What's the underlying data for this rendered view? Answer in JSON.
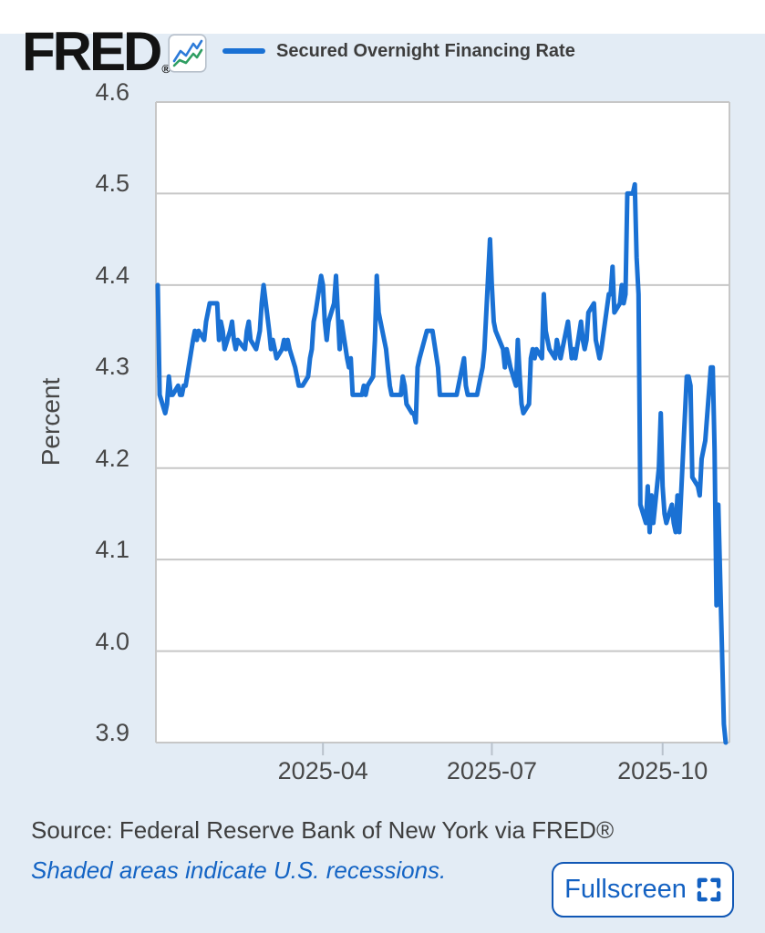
{
  "header": {
    "logo_text": "FRED",
    "registered_mark": "®",
    "logo_icon": "line-chart-icon"
  },
  "legend": {
    "series_label": "Secured Overnight Financing Rate",
    "swatch_color": "#1a71d4"
  },
  "footer": {
    "source_text": "Source: Federal Reserve Bank of New York via FRED®",
    "recession_note": "Shaded areas indicate U.S. recessions.",
    "fullscreen_label": "Fullscreen",
    "fullscreen_icon": "fullscreen-expand-icon"
  },
  "colors": {
    "widget_background": "#e3ecf5",
    "plot_background": "#ffffff",
    "grid": "#c7c7c7",
    "tick": "#b9c2cc",
    "axis_text": "#474747",
    "line": "#1a71d4",
    "blue_text": "#1464c4",
    "button_border": "#1057b5",
    "button_text": "#1361c2"
  },
  "chart_data": {
    "type": "line",
    "title": "Secured Overnight Financing Rate",
    "xlabel": "",
    "ylabel": "Percent",
    "ylim": [
      3.9,
      4.6
    ],
    "yticks": [
      3.9,
      4.0,
      4.1,
      4.2,
      4.3,
      4.4,
      4.5,
      4.6
    ],
    "ytick_labels": [
      "3.9",
      "4.0",
      "4.1",
      "4.2",
      "4.3",
      "4.4",
      "4.5",
      "4.6"
    ],
    "xlim": [
      "2025-01-01",
      "2025-11-06"
    ],
    "xticks": [
      "2025-04-01",
      "2025-07-01",
      "2025-10-01"
    ],
    "xtick_labels": [
      "2025-04",
      "2025-07",
      "2025-10"
    ],
    "grid": "horizontal",
    "legend_position": "top",
    "line_color": "#1a71d4",
    "line_width": 5,
    "series": [
      {
        "name": "Secured Overnight Financing Rate",
        "units": "Percent",
        "points": [
          [
            "2025-01-02",
            4.4
          ],
          [
            "2025-01-03",
            4.28
          ],
          [
            "2025-01-06",
            4.26
          ],
          [
            "2025-01-07",
            4.27
          ],
          [
            "2025-01-08",
            4.3
          ],
          [
            "2025-01-09",
            4.28
          ],
          [
            "2025-01-10",
            4.28
          ],
          [
            "2025-01-13",
            4.29
          ],
          [
            "2025-01-14",
            4.28
          ],
          [
            "2025-01-15",
            4.28
          ],
          [
            "2025-01-16",
            4.29
          ],
          [
            "2025-01-17",
            4.29
          ],
          [
            "2025-01-21",
            4.34
          ],
          [
            "2025-01-22",
            4.35
          ],
          [
            "2025-01-23",
            4.34
          ],
          [
            "2025-01-24",
            4.35
          ],
          [
            "2025-01-27",
            4.34
          ],
          [
            "2025-01-28",
            4.36
          ],
          [
            "2025-01-29",
            4.37
          ],
          [
            "2025-01-30",
            4.38
          ],
          [
            "2025-01-31",
            4.38
          ],
          [
            "2025-02-03",
            4.38
          ],
          [
            "2025-02-04",
            4.34
          ],
          [
            "2025-02-05",
            4.36
          ],
          [
            "2025-02-06",
            4.35
          ],
          [
            "2025-02-07",
            4.33
          ],
          [
            "2025-02-10",
            4.35
          ],
          [
            "2025-02-11",
            4.36
          ],
          [
            "2025-02-12",
            4.34
          ],
          [
            "2025-02-13",
            4.33
          ],
          [
            "2025-02-14",
            4.34
          ],
          [
            "2025-02-18",
            4.33
          ],
          [
            "2025-02-19",
            4.35
          ],
          [
            "2025-02-20",
            4.36
          ],
          [
            "2025-02-21",
            4.34
          ],
          [
            "2025-02-24",
            4.33
          ],
          [
            "2025-02-25",
            4.34
          ],
          [
            "2025-02-26",
            4.35
          ],
          [
            "2025-02-27",
            4.38
          ],
          [
            "2025-02-28",
            4.4
          ],
          [
            "2025-03-03",
            4.35
          ],
          [
            "2025-03-04",
            4.33
          ],
          [
            "2025-03-05",
            4.34
          ],
          [
            "2025-03-06",
            4.33
          ],
          [
            "2025-03-07",
            4.32
          ],
          [
            "2025-03-10",
            4.33
          ],
          [
            "2025-03-11",
            4.34
          ],
          [
            "2025-03-12",
            4.33
          ],
          [
            "2025-03-13",
            4.34
          ],
          [
            "2025-03-14",
            4.33
          ],
          [
            "2025-03-17",
            4.31
          ],
          [
            "2025-03-18",
            4.3
          ],
          [
            "2025-03-19",
            4.29
          ],
          [
            "2025-03-20",
            4.29
          ],
          [
            "2025-03-21",
            4.29
          ],
          [
            "2025-03-24",
            4.3
          ],
          [
            "2025-03-25",
            4.32
          ],
          [
            "2025-03-26",
            4.33
          ],
          [
            "2025-03-27",
            4.36
          ],
          [
            "2025-03-28",
            4.37
          ],
          [
            "2025-03-31",
            4.41
          ],
          [
            "2025-04-01",
            4.4
          ],
          [
            "2025-04-02",
            4.36
          ],
          [
            "2025-04-03",
            4.34
          ],
          [
            "2025-04-04",
            4.36
          ],
          [
            "2025-04-07",
            4.38
          ],
          [
            "2025-04-08",
            4.41
          ],
          [
            "2025-04-09",
            4.37
          ],
          [
            "2025-04-10",
            4.33
          ],
          [
            "2025-04-11",
            4.36
          ],
          [
            "2025-04-14",
            4.32
          ],
          [
            "2025-04-15",
            4.31
          ],
          [
            "2025-04-16",
            4.32
          ],
          [
            "2025-04-17",
            4.28
          ],
          [
            "2025-04-21",
            4.28
          ],
          [
            "2025-04-22",
            4.28
          ],
          [
            "2025-04-23",
            4.29
          ],
          [
            "2025-04-24",
            4.28
          ],
          [
            "2025-04-25",
            4.29
          ],
          [
            "2025-04-28",
            4.3
          ],
          [
            "2025-04-29",
            4.34
          ],
          [
            "2025-04-30",
            4.41
          ],
          [
            "2025-05-01",
            4.37
          ],
          [
            "2025-05-02",
            4.36
          ],
          [
            "2025-05-05",
            4.33
          ],
          [
            "2025-05-06",
            4.31
          ],
          [
            "2025-05-07",
            4.29
          ],
          [
            "2025-05-08",
            4.28
          ],
          [
            "2025-05-09",
            4.28
          ],
          [
            "2025-05-12",
            4.28
          ],
          [
            "2025-05-13",
            4.28
          ],
          [
            "2025-05-14",
            4.3
          ],
          [
            "2025-05-15",
            4.29
          ],
          [
            "2025-05-16",
            4.27
          ],
          [
            "2025-05-19",
            4.26
          ],
          [
            "2025-05-20",
            4.26
          ],
          [
            "2025-05-21",
            4.25
          ],
          [
            "2025-05-22",
            4.31
          ],
          [
            "2025-05-23",
            4.32
          ],
          [
            "2025-05-27",
            4.35
          ],
          [
            "2025-05-28",
            4.35
          ],
          [
            "2025-05-29",
            4.35
          ],
          [
            "2025-05-30",
            4.35
          ],
          [
            "2025-06-02",
            4.31
          ],
          [
            "2025-06-03",
            4.28
          ],
          [
            "2025-06-04",
            4.28
          ],
          [
            "2025-06-05",
            4.28
          ],
          [
            "2025-06-06",
            4.28
          ],
          [
            "2025-06-09",
            4.28
          ],
          [
            "2025-06-10",
            4.28
          ],
          [
            "2025-06-11",
            4.28
          ],
          [
            "2025-06-12",
            4.28
          ],
          [
            "2025-06-13",
            4.29
          ],
          [
            "2025-06-16",
            4.32
          ],
          [
            "2025-06-17",
            4.29
          ],
          [
            "2025-06-18",
            4.28
          ],
          [
            "2025-06-20",
            4.28
          ],
          [
            "2025-06-23",
            4.28
          ],
          [
            "2025-06-24",
            4.29
          ],
          [
            "2025-06-25",
            4.3
          ],
          [
            "2025-06-26",
            4.31
          ],
          [
            "2025-06-27",
            4.33
          ],
          [
            "2025-06-30",
            4.45
          ],
          [
            "2025-07-01",
            4.4
          ],
          [
            "2025-07-02",
            4.36
          ],
          [
            "2025-07-03",
            4.35
          ],
          [
            "2025-07-07",
            4.33
          ],
          [
            "2025-07-08",
            4.31
          ],
          [
            "2025-07-09",
            4.33
          ],
          [
            "2025-07-10",
            4.32
          ],
          [
            "2025-07-11",
            4.31
          ],
          [
            "2025-07-14",
            4.29
          ],
          [
            "2025-07-15",
            4.34
          ],
          [
            "2025-07-16",
            4.3
          ],
          [
            "2025-07-17",
            4.27
          ],
          [
            "2025-07-18",
            4.26
          ],
          [
            "2025-07-21",
            4.27
          ],
          [
            "2025-07-22",
            4.32
          ],
          [
            "2025-07-23",
            4.33
          ],
          [
            "2025-07-24",
            4.32
          ],
          [
            "2025-07-25",
            4.33
          ],
          [
            "2025-07-28",
            4.32
          ],
          [
            "2025-07-29",
            4.39
          ],
          [
            "2025-07-30",
            4.35
          ],
          [
            "2025-07-31",
            4.34
          ],
          [
            "2025-08-01",
            4.33
          ],
          [
            "2025-08-04",
            4.32
          ],
          [
            "2025-08-05",
            4.34
          ],
          [
            "2025-08-06",
            4.33
          ],
          [
            "2025-08-07",
            4.32
          ],
          [
            "2025-08-08",
            4.33
          ],
          [
            "2025-08-11",
            4.36
          ],
          [
            "2025-08-12",
            4.34
          ],
          [
            "2025-08-13",
            4.32
          ],
          [
            "2025-08-14",
            4.33
          ],
          [
            "2025-08-15",
            4.32
          ],
          [
            "2025-08-18",
            4.36
          ],
          [
            "2025-08-19",
            4.34
          ],
          [
            "2025-08-20",
            4.33
          ],
          [
            "2025-08-21",
            4.34
          ],
          [
            "2025-08-22",
            4.37
          ],
          [
            "2025-08-25",
            4.38
          ],
          [
            "2025-08-26",
            4.34
          ],
          [
            "2025-08-27",
            4.33
          ],
          [
            "2025-08-28",
            4.32
          ],
          [
            "2025-08-29",
            4.33
          ],
          [
            "2025-09-02",
            4.39
          ],
          [
            "2025-09-03",
            4.39
          ],
          [
            "2025-09-04",
            4.42
          ],
          [
            "2025-09-05",
            4.37
          ],
          [
            "2025-09-08",
            4.38
          ],
          [
            "2025-09-09",
            4.4
          ],
          [
            "2025-09-10",
            4.38
          ],
          [
            "2025-09-11",
            4.39
          ],
          [
            "2025-09-12",
            4.5
          ],
          [
            "2025-09-15",
            4.5
          ],
          [
            "2025-09-16",
            4.51
          ],
          [
            "2025-09-17",
            4.43
          ],
          [
            "2025-09-18",
            4.39
          ],
          [
            "2025-09-19",
            4.16
          ],
          [
            "2025-09-22",
            4.14
          ],
          [
            "2025-09-23",
            4.18
          ],
          [
            "2025-09-24",
            4.13
          ],
          [
            "2025-09-25",
            4.17
          ],
          [
            "2025-09-26",
            4.14
          ],
          [
            "2025-09-29",
            4.2
          ],
          [
            "2025-09-30",
            4.26
          ],
          [
            "2025-10-01",
            4.18
          ],
          [
            "2025-10-02",
            4.15
          ],
          [
            "2025-10-03",
            4.14
          ],
          [
            "2025-10-06",
            4.16
          ],
          [
            "2025-10-07",
            4.14
          ],
          [
            "2025-10-08",
            4.13
          ],
          [
            "2025-10-09",
            4.17
          ],
          [
            "2025-10-10",
            4.13
          ],
          [
            "2025-10-14",
            4.3
          ],
          [
            "2025-10-15",
            4.3
          ],
          [
            "2025-10-16",
            4.29
          ],
          [
            "2025-10-17",
            4.19
          ],
          [
            "2025-10-20",
            4.18
          ],
          [
            "2025-10-21",
            4.17
          ],
          [
            "2025-10-22",
            4.21
          ],
          [
            "2025-10-23",
            4.22
          ],
          [
            "2025-10-24",
            4.23
          ],
          [
            "2025-10-27",
            4.31
          ],
          [
            "2025-10-28",
            4.31
          ],
          [
            "2025-10-29",
            4.22
          ],
          [
            "2025-10-30",
            4.05
          ],
          [
            "2025-10-31",
            4.16
          ],
          [
            "2025-11-03",
            3.92
          ],
          [
            "2025-11-04",
            3.9
          ]
        ]
      }
    ]
  }
}
